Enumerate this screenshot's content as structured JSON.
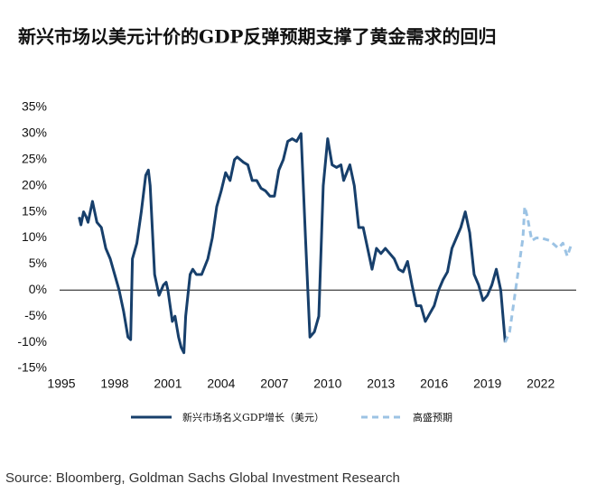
{
  "chart_data": {
    "type": "line",
    "title": "新兴市场以美元计价的GDP反弹预期支撑了黄金需求的回归",
    "source": "Source: Bloomberg, Goldman Sachs Global Investment Research",
    "xlim": [
      1995,
      2024
    ],
    "xticks": [
      1995,
      1998,
      2001,
      2004,
      2007,
      2010,
      2013,
      2016,
      2019,
      2022
    ],
    "ylim": [
      -15,
      35
    ],
    "yticks": [
      {
        "value": -15,
        "label": "-15%"
      },
      {
        "value": -10,
        "label": "-10%"
      },
      {
        "value": -5,
        "label": "-5%"
      },
      {
        "value": 0,
        "label": "0%"
      },
      {
        "value": 5,
        "label": "5%"
      },
      {
        "value": 10,
        "label": "10%"
      },
      {
        "value": 15,
        "label": "15%"
      },
      {
        "value": 20,
        "label": "20%"
      },
      {
        "value": 25,
        "label": "25%"
      },
      {
        "value": 30,
        "label": "30%"
      },
      {
        "value": 35,
        "label": "35%"
      }
    ],
    "grid": false,
    "series": [
      {
        "name": "新兴市场名义GDP增长（美元）",
        "color": "#173f6b",
        "dashed": false,
        "x": [
          1996.0,
          1996.1,
          1996.25,
          1996.4,
          1996.5,
          1996.75,
          1997.0,
          1997.25,
          1997.5,
          1997.75,
          1998.0,
          1998.25,
          1998.5,
          1998.75,
          1998.9,
          1999.0,
          1999.25,
          1999.5,
          1999.75,
          1999.9,
          2000.0,
          2000.25,
          2000.5,
          2000.75,
          2000.9,
          2001.0,
          2001.25,
          2001.4,
          2001.6,
          2001.75,
          2001.9,
          2002.0,
          2002.25,
          2002.4,
          2002.6,
          2002.9,
          2003.25,
          2003.5,
          2003.75,
          2004.0,
          2004.25,
          2004.5,
          2004.75,
          2004.9,
          2005.25,
          2005.5,
          2005.75,
          2006.0,
          2006.25,
          2006.5,
          2006.75,
          2007.0,
          2007.25,
          2007.5,
          2007.75,
          2008.0,
          2008.25,
          2008.5,
          2008.75,
          2009.0,
          2009.25,
          2009.5,
          2009.75,
          2010.0,
          2010.25,
          2010.5,
          2010.75,
          2010.9,
          2011.25,
          2011.5,
          2011.75,
          2012.0,
          2012.25,
          2012.5,
          2012.75,
          2013.0,
          2013.25,
          2013.5,
          2013.75,
          2014.0,
          2014.25,
          2014.5,
          2014.75,
          2015.0,
          2015.25,
          2015.5,
          2015.75,
          2016.0,
          2016.25,
          2016.5,
          2016.75,
          2017.0,
          2017.25,
          2017.5,
          2017.75,
          2018.0,
          2018.25,
          2018.5,
          2018.75,
          2019.0,
          2019.25,
          2019.5,
          2019.75,
          2020.0
        ],
        "values": [
          14,
          12.5,
          15,
          14,
          13,
          17,
          13,
          12,
          8,
          6,
          3,
          0,
          -4,
          -9,
          -9.5,
          6,
          9,
          15,
          22,
          23,
          20,
          3,
          -1,
          1,
          1.5,
          0,
          -6,
          -5,
          -9,
          -11,
          -12,
          -5,
          3,
          4,
          3,
          3,
          6,
          10,
          16,
          19,
          22.5,
          21,
          25,
          25.5,
          24.5,
          24,
          21,
          21,
          19.5,
          19,
          18,
          18,
          23,
          25,
          28.5,
          29,
          28.5,
          30,
          10,
          -9,
          -8,
          -5,
          20,
          29,
          24,
          23.5,
          24,
          21,
          24,
          20,
          12,
          12,
          8,
          4,
          8,
          7,
          8,
          7,
          6,
          4,
          3.5,
          5.5,
          1,
          -3,
          -3,
          -6,
          -4.5,
          -3,
          0,
          2,
          3.5,
          8,
          10,
          12,
          15,
          11,
          3,
          1,
          -2,
          -1,
          1,
          4,
          0,
          -10
        ]
      },
      {
        "name": "高盛预期",
        "color": "#9cc3e4",
        "dashed": true,
        "x": [
          2020.0,
          2020.25,
          2020.5,
          2020.75,
          2021.0,
          2021.1,
          2021.25,
          2021.5,
          2021.75,
          2022.0,
          2022.5,
          2023.0,
          2023.25,
          2023.5,
          2023.75
        ],
        "values": [
          -10,
          -8,
          -2,
          4,
          10,
          16,
          14,
          9.5,
          10,
          10,
          9.5,
          8,
          9,
          6.5,
          9
        ]
      }
    ]
  }
}
